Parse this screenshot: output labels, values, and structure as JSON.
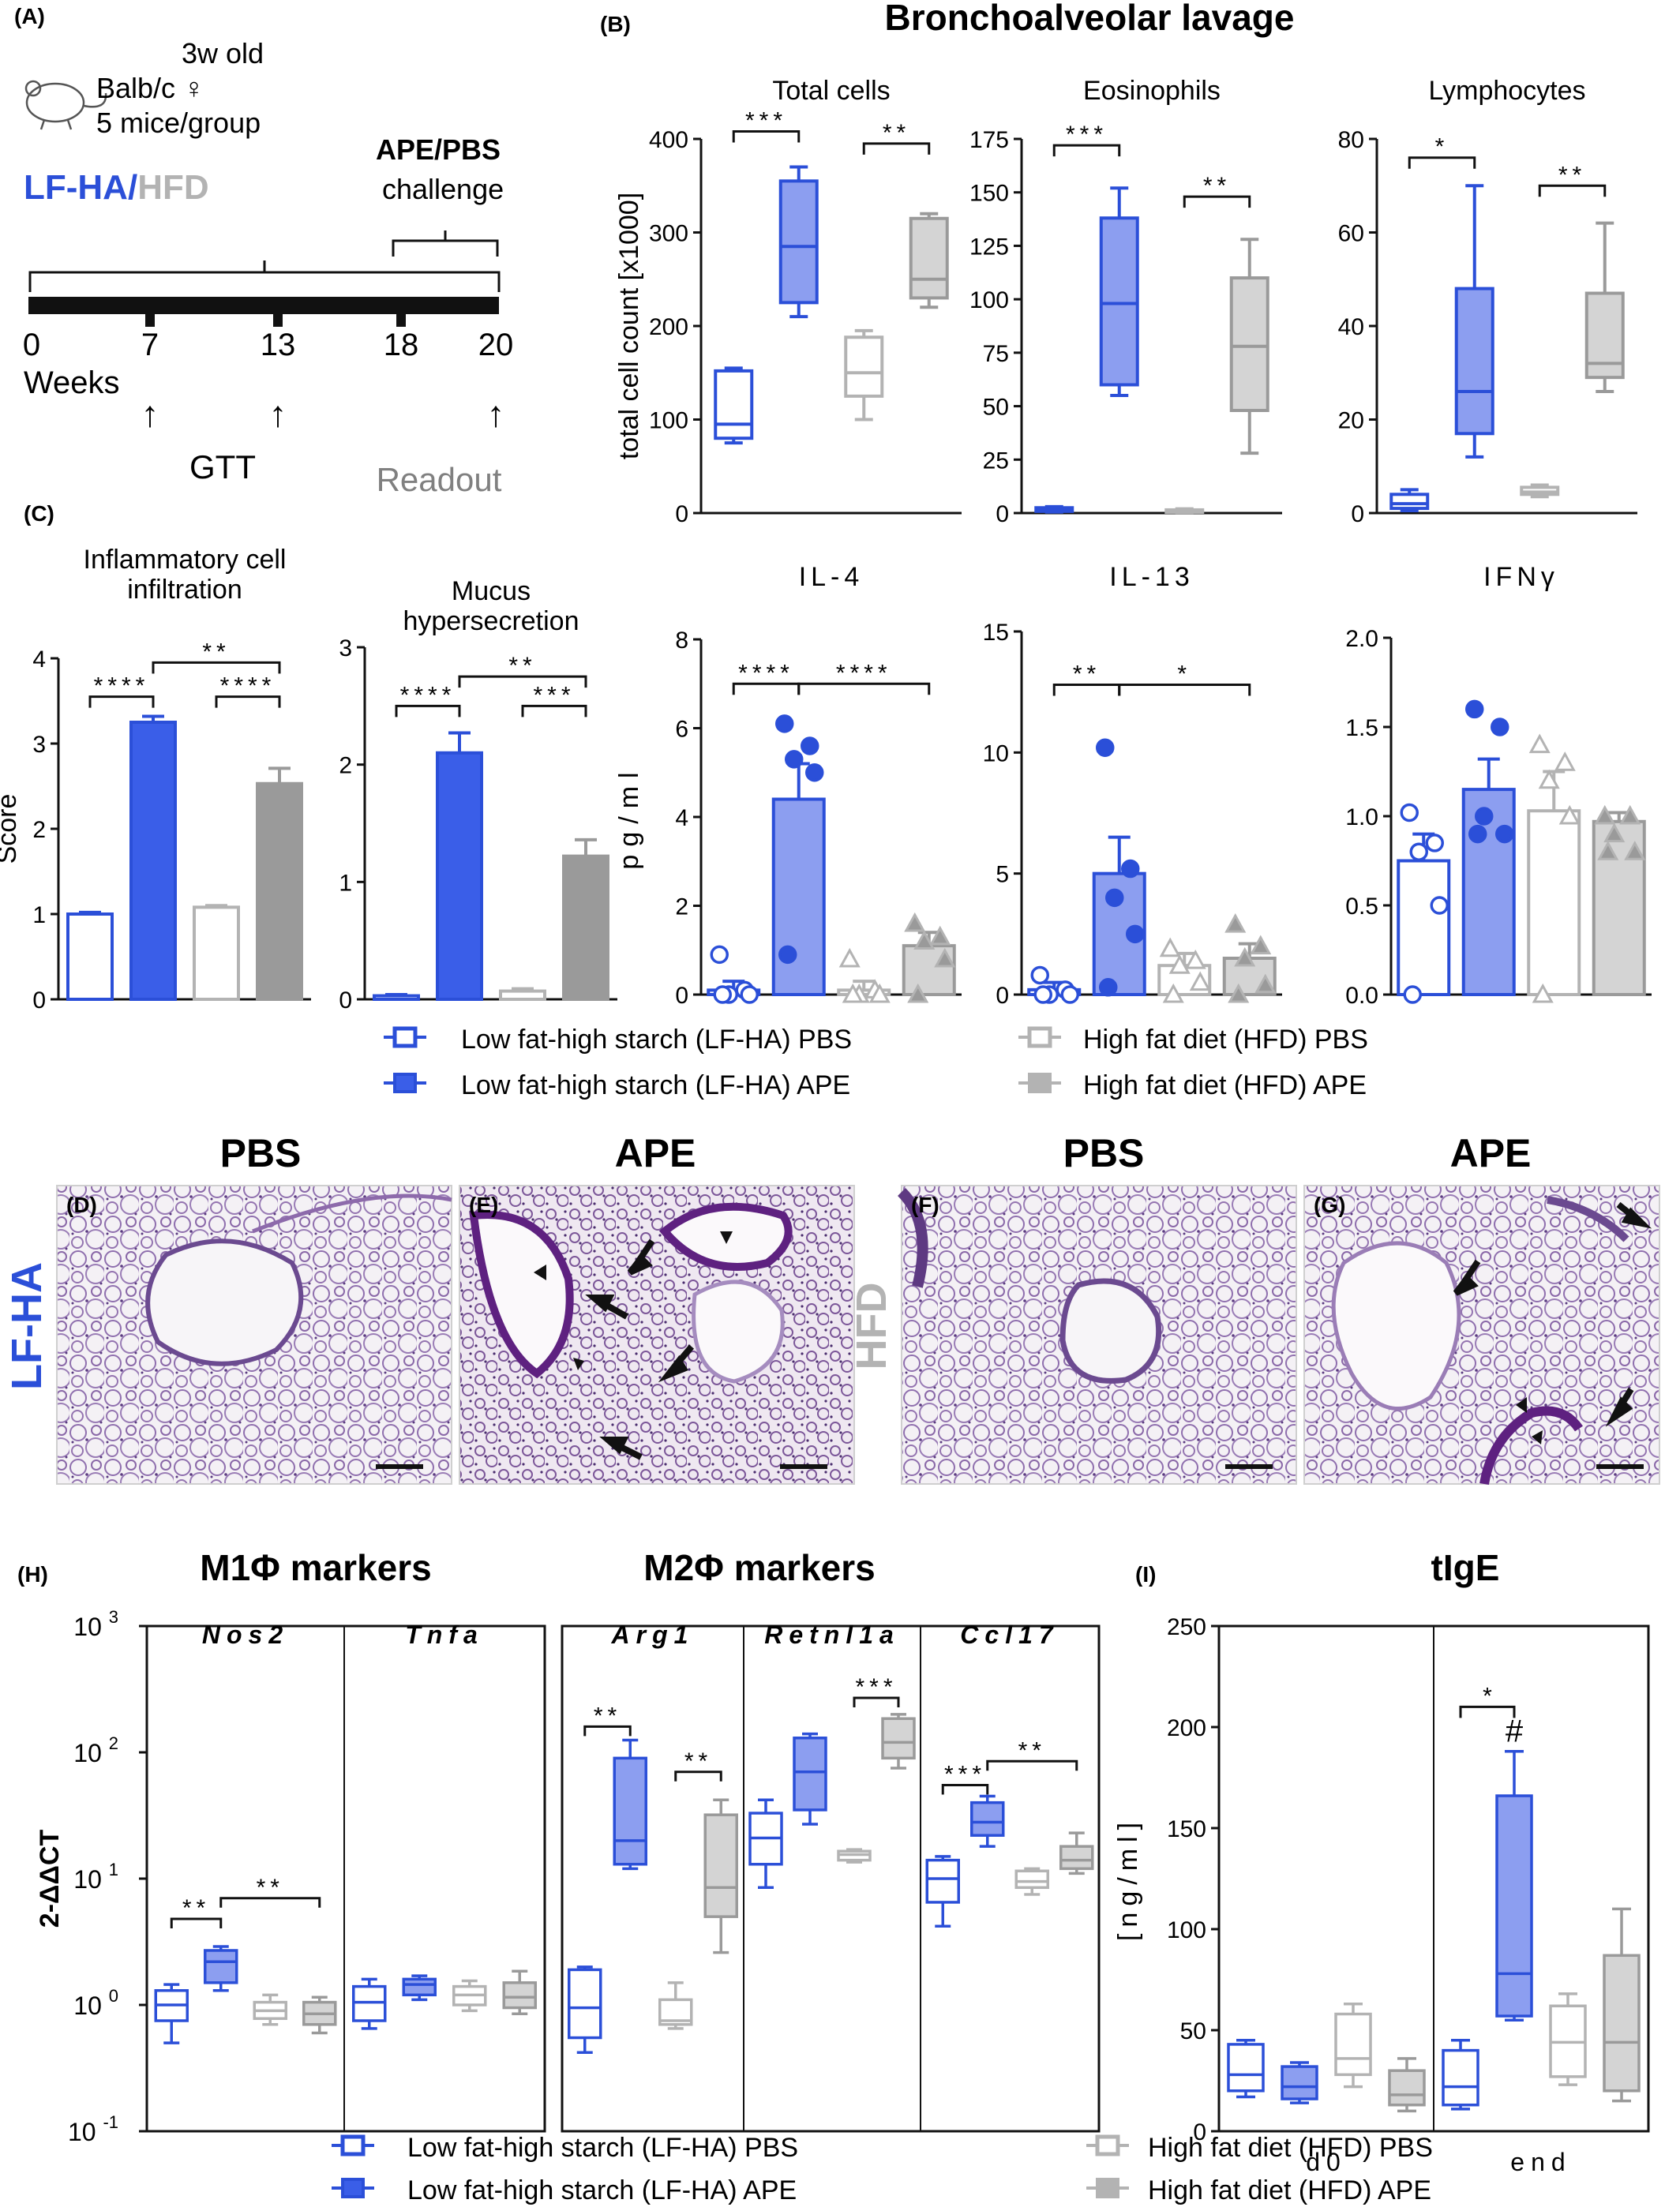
{
  "colors": {
    "blue": "#2b4fd8",
    "blue_fill": "#8c9ef0",
    "blue_fill_dark": "#3a5ee8",
    "gray": "#b3b3b3",
    "gray_fill": "#d4d4d4",
    "gray_dark": "#9a9a9a",
    "histo_bg": "#f3f0f4",
    "histo_stain": "#7e5a9c",
    "histo_mucus": "#6b2a8a"
  },
  "panel_labels": {
    "a": "(A)",
    "b": "(B)",
    "c": "(C)",
    "d": "(D)",
    "e": "(E)",
    "f": "(F)",
    "g": "(G)",
    "h": "(H)",
    "i": "(I)"
  },
  "panel_a": {
    "mouse_age": "3w old",
    "strain": "Balb/c ♀",
    "group_size": "5 mice/group",
    "diet_blue": "LF-HA",
    "diet_sep": "/",
    "diet_gray": "HFD",
    "challenge_title": "APE/PBS",
    "challenge_sub": "challenge",
    "week_label": "Weeks",
    "weeks": [
      "0",
      "7",
      "13",
      "18",
      "20"
    ],
    "arrow_glyph": "↑",
    "gtt_label": "GTT",
    "readout_label": "Readout"
  },
  "panel_b_title": "Bronchoalveolar lavage",
  "panel_c": {
    "titles": [
      "Inflammatory cell\ninfiltration",
      "Mucus\nhypersecretion"
    ],
    "ylabel": "Score"
  },
  "histology": {
    "row_label_blue": "LF-HA",
    "row_label_gray": "HFD",
    "headers": [
      "PBS",
      "APE",
      "PBS",
      "APE"
    ]
  },
  "panel_h": {
    "title_m1": "M1Φ markers",
    "title_m2": "M2Φ markers",
    "ylabel": "2-ΔΔCT",
    "genes": [
      "Nos2",
      "Tnfa",
      "Arg1",
      "Retnl1a",
      "Ccl17"
    ]
  },
  "panel_i": {
    "title": "tIgE",
    "hash_mark": "#"
  },
  "legend": {
    "lf_pbs": "Low fat-high starch (LF-HA) PBS",
    "lf_ape": "Low fat-high starch (LF-HA) APE",
    "hfd_pbs": "High fat diet (HFD) PBS",
    "hfd_ape": "High fat diet (HFD) APE"
  },
  "chart_data": [
    {
      "id": "total-cells",
      "type": "box",
      "title": "Total cells",
      "ylabel": "total  cell  count  [x1000]",
      "ylim": [
        0,
        400
      ],
      "yticks": [
        "0",
        "100",
        "200",
        "300",
        "400"
      ],
      "groups": [
        {
          "min": 75,
          "q1": 80,
          "med": 95,
          "q3": 152,
          "max": 155
        },
        {
          "min": 210,
          "q1": 225,
          "med": 285,
          "q3": 355,
          "max": 370
        },
        {
          "min": 100,
          "q1": 125,
          "med": 150,
          "q3": 188,
          "max": 195
        },
        {
          "min": 220,
          "q1": 230,
          "med": 250,
          "q3": 315,
          "max": 320
        }
      ],
      "significance": [
        {
          "from": 0,
          "to": 1,
          "y": 408,
          "label": "***"
        },
        {
          "from": 2,
          "to": 3,
          "y": 395,
          "label": "**"
        }
      ]
    },
    {
      "id": "eosinophils",
      "type": "box",
      "title": "Eosinophils",
      "ylabel": "",
      "ylim": [
        0,
        175
      ],
      "yticks": [
        "0",
        "25",
        "50",
        "75",
        "100",
        "125",
        "150",
        "175"
      ],
      "groups": [
        {
          "min": 0.5,
          "q1": 0.8,
          "med": 1.5,
          "q3": 2.5,
          "max": 3
        },
        {
          "min": 55,
          "q1": 60,
          "med": 98,
          "q3": 138,
          "max": 152
        },
        {
          "min": 0.3,
          "q1": 0.5,
          "med": 1,
          "q3": 1.5,
          "max": 2
        },
        {
          "min": 28,
          "q1": 48,
          "med": 78,
          "q3": 110,
          "max": 128
        }
      ],
      "significance": [
        {
          "from": 0,
          "to": 1,
          "y": 172,
          "label": "***"
        },
        {
          "from": 2,
          "to": 3,
          "y": 148,
          "label": "**"
        }
      ]
    },
    {
      "id": "lymphocytes",
      "type": "box",
      "title": "Lymphocytes",
      "ylabel": "",
      "ylim": [
        0,
        80
      ],
      "yticks": [
        "0",
        "20",
        "40",
        "60",
        "80"
      ],
      "groups": [
        {
          "min": 0.5,
          "q1": 1,
          "med": 2,
          "q3": 4,
          "max": 5
        },
        {
          "min": 12,
          "q1": 17,
          "med": 26,
          "q3": 48,
          "max": 70
        },
        {
          "min": 3.5,
          "q1": 4,
          "med": 4.5,
          "q3": 5.5,
          "max": 6
        },
        {
          "min": 26,
          "q1": 29,
          "med": 32,
          "q3": 47,
          "max": 62
        }
      ],
      "significance": [
        {
          "from": 0,
          "to": 1,
          "y": 76,
          "label": "*"
        },
        {
          "from": 2,
          "to": 3,
          "y": 70,
          "label": "**"
        }
      ]
    },
    {
      "id": "il4",
      "type": "bar_scatter",
      "title": "IL-4",
      "ylabel": "pg/ml",
      "ylim": [
        0,
        8
      ],
      "yticks": [
        "0",
        "2",
        "4",
        "6",
        "8"
      ],
      "groups": [
        {
          "mean": 0.1,
          "sem": 0.2,
          "points": [
            0.9,
            0.1,
            0,
            0,
            0
          ]
        },
        {
          "mean": 4.4,
          "sem": 0.8,
          "points": [
            6.1,
            5.6,
            5.3,
            5.0,
            0.9
          ]
        },
        {
          "mean": 0.1,
          "sem": 0.2,
          "points": [
            0.8,
            0.1,
            0,
            0,
            0
          ]
        },
        {
          "mean": 1.1,
          "sem": 0.3,
          "points": [
            1.6,
            1.3,
            1.2,
            0.8,
            0
          ]
        }
      ],
      "significance": [
        {
          "from": 0,
          "to": 1,
          "y": 7.0,
          "label": "****"
        },
        {
          "from": 1,
          "to": 3,
          "y": 7.0,
          "label": "****"
        }
      ]
    },
    {
      "id": "il13",
      "type": "bar_scatter",
      "title": "IL-13",
      "ylabel": "",
      "ylim": [
        0,
        15
      ],
      "yticks": [
        "0",
        "5",
        "10",
        "15"
      ],
      "groups": [
        {
          "mean": 0.2,
          "sem": 0.3,
          "points": [
            0.8,
            0.2,
            0,
            0,
            0
          ]
        },
        {
          "mean": 5.0,
          "sem": 1.5,
          "points": [
            10.2,
            5.2,
            4.0,
            2.5,
            0.3
          ]
        },
        {
          "mean": 1.2,
          "sem": 0.5,
          "points": [
            1.9,
            1.4,
            1.2,
            0.5,
            0
          ]
        },
        {
          "mean": 1.5,
          "sem": 0.6,
          "points": [
            2.9,
            2.0,
            1.5,
            0.4,
            0
          ]
        }
      ],
      "significance": [
        {
          "from": 0,
          "to": 1,
          "y": 12.8,
          "label": "**"
        },
        {
          "from": 1,
          "to": 3,
          "y": 12.8,
          "label": "*"
        }
      ]
    },
    {
      "id": "ifng",
      "type": "bar_scatter",
      "title": "IFNγ",
      "ylabel": "",
      "ylim": [
        0,
        2.0
      ],
      "yticks": [
        "0.0",
        "0.5",
        "1.0",
        "1.5",
        "2.0"
      ],
      "groups": [
        {
          "mean": 0.75,
          "sem": 0.15,
          "points": [
            1.02,
            0.85,
            0.8,
            0.5,
            0
          ]
        },
        {
          "mean": 1.15,
          "sem": 0.17,
          "points": [
            1.6,
            1.5,
            1.0,
            0.9,
            0.9
          ]
        },
        {
          "mean": 1.03,
          "sem": 0.22,
          "points": [
            1.4,
            1.3,
            1.2,
            1.0,
            0
          ]
        },
        {
          "mean": 0.97,
          "sem": 0.05,
          "points": [
            1.0,
            1.0,
            0.9,
            0.8,
            0.8
          ]
        }
      ],
      "significance": []
    },
    {
      "id": "infiltration",
      "type": "bar",
      "title": "Inflammatory cell\ninfiltration",
      "ylabel": "Score",
      "ylim": [
        0,
        4
      ],
      "yticks": [
        "0",
        "1",
        "2",
        "3",
        "4"
      ],
      "groups": [
        {
          "mean": 1.0,
          "sem": 0.02
        },
        {
          "mean": 3.25,
          "sem": 0.07
        },
        {
          "mean": 1.08,
          "sem": 0.02
        },
        {
          "mean": 2.53,
          "sem": 0.18
        }
      ],
      "significance": [
        {
          "from": 0,
          "to": 1,
          "y": 3.55,
          "label": "****"
        },
        {
          "from": 2,
          "to": 3,
          "y": 3.55,
          "label": "****"
        },
        {
          "from": 1,
          "to": 3,
          "y": 3.95,
          "label": "**"
        }
      ]
    },
    {
      "id": "mucus",
      "type": "bar",
      "title": "Mucus\nhypersecretion",
      "ylabel": "",
      "ylim": [
        0,
        3
      ],
      "yticks": [
        "0",
        "1",
        "2",
        "3"
      ],
      "groups": [
        {
          "mean": 0.03,
          "sem": 0.01
        },
        {
          "mean": 2.1,
          "sem": 0.17
        },
        {
          "mean": 0.07,
          "sem": 0.02
        },
        {
          "mean": 1.22,
          "sem": 0.14
        }
      ],
      "significance": [
        {
          "from": 0,
          "to": 1,
          "y": 2.5,
          "label": "****"
        },
        {
          "from": 2,
          "to": 3,
          "y": 2.5,
          "label": "***"
        },
        {
          "from": 1,
          "to": 3,
          "y": 2.75,
          "label": "**"
        }
      ]
    },
    {
      "id": "macrophage-markers",
      "type": "box",
      "scale": "log10",
      "ylabel": "2-ΔΔCT",
      "ylim": [
        0.1,
        1000
      ],
      "ytick_powers": [
        "-1",
        "0",
        "1",
        "2",
        "3"
      ],
      "genes": [
        {
          "name": "Nos2",
          "groups": [
            {
              "min": 0.5,
              "q1": 0.75,
              "med": 1.0,
              "q3": 1.3,
              "max": 1.45
            },
            {
              "min": 1.3,
              "q1": 1.5,
              "med": 2.2,
              "q3": 2.7,
              "max": 2.9
            },
            {
              "min": 0.7,
              "q1": 0.78,
              "med": 0.9,
              "q3": 1.05,
              "max": 1.2
            },
            {
              "min": 0.6,
              "q1": 0.7,
              "med": 0.85,
              "q3": 1.05,
              "max": 1.15
            }
          ],
          "significance": [
            {
              "from": 0,
              "to": 1,
              "y": 4.8,
              "label": "**"
            },
            {
              "from": 1,
              "to": 3,
              "y": 7.0,
              "label": "**"
            }
          ]
        },
        {
          "name": "Tnfa",
          "groups": [
            {
              "min": 0.65,
              "q1": 0.75,
              "med": 1.05,
              "q3": 1.4,
              "max": 1.6
            },
            {
              "min": 1.1,
              "q1": 1.2,
              "med": 1.45,
              "q3": 1.6,
              "max": 1.7
            },
            {
              "min": 0.9,
              "q1": 1.0,
              "med": 1.2,
              "q3": 1.4,
              "max": 1.55
            },
            {
              "min": 0.85,
              "q1": 0.95,
              "med": 1.15,
              "q3": 1.5,
              "max": 1.85
            }
          ],
          "significance": []
        },
        {
          "name": "Arg1",
          "groups": [
            {
              "min": 0.42,
              "q1": 0.55,
              "med": 0.95,
              "q3": 1.9,
              "max": 2.0
            },
            {
              "min": 12,
              "q1": 13,
              "med": 20,
              "q3": 90,
              "max": 125
            },
            {
              "min": 0.65,
              "q1": 0.7,
              "med": 0.75,
              "q3": 1.1,
              "max": 1.5
            },
            {
              "min": 2.6,
              "q1": 5,
              "med": 8.5,
              "q3": 32,
              "max": 42
            }
          ],
          "significance": [
            {
              "from": 0,
              "to": 1,
              "y": 160,
              "label": "**"
            },
            {
              "from": 2,
              "to": 3,
              "y": 70,
              "label": "**"
            }
          ]
        },
        {
          "name": "Retnl1a",
          "groups": [
            {
              "min": 8.5,
              "q1": 13,
              "med": 21,
              "q3": 33,
              "max": 42
            },
            {
              "min": 27,
              "q1": 35,
              "med": 70,
              "q3": 130,
              "max": 140
            },
            {
              "min": 13.5,
              "q1": 14,
              "med": 15.5,
              "q3": 16.5,
              "max": 17
            },
            {
              "min": 75,
              "q1": 90,
              "med": 120,
              "q3": 185,
              "max": 200
            }
          ],
          "significance": [
            {
              "from": 2,
              "to": 3,
              "y": 270,
              "label": "***"
            }
          ]
        },
        {
          "name": "Ccl17",
          "groups": [
            {
              "min": 4.2,
              "q1": 6.5,
              "med": 10,
              "q3": 14,
              "max": 15
            },
            {
              "min": 18,
              "q1": 22,
              "med": 28,
              "q3": 40,
              "max": 45
            },
            {
              "min": 7.5,
              "q1": 8.5,
              "med": 9.5,
              "q3": 11.5,
              "max": 12
            },
            {
              "min": 11,
              "q1": 12,
              "med": 14,
              "q3": 18,
              "max": 23
            }
          ],
          "significance": [
            {
              "from": 0,
              "to": 1,
              "y": 55,
              "label": "***"
            },
            {
              "from": 1,
              "to": 3,
              "y": 85,
              "label": "**"
            }
          ]
        }
      ]
    },
    {
      "id": "tige",
      "type": "box",
      "title": "tIgE",
      "ylabel": "[ng/ml]",
      "ylim": [
        0,
        250
      ],
      "yticks": [
        "0",
        "50",
        "100",
        "150",
        "200",
        "250"
      ],
      "timepoints": [
        {
          "name": "d0",
          "groups": [
            {
              "min": 17,
              "q1": 20,
              "med": 28,
              "q3": 43,
              "max": 45
            },
            {
              "min": 14,
              "q1": 16,
              "med": 22,
              "q3": 32,
              "max": 34
            },
            {
              "min": 22,
              "q1": 28,
              "med": 36,
              "q3": 58,
              "max": 63
            },
            {
              "min": 10,
              "q1": 13,
              "med": 18,
              "q3": 30,
              "max": 36
            }
          ],
          "significance": []
        },
        {
          "name": "end",
          "groups": [
            {
              "min": 11,
              "q1": 13,
              "med": 22,
              "q3": 40,
              "max": 45
            },
            {
              "min": 55,
              "q1": 57,
              "med": 78,
              "q3": 166,
              "max": 188
            },
            {
              "min": 23,
              "q1": 27,
              "med": 44,
              "q3": 62,
              "max": 68
            },
            {
              "min": 15,
              "q1": 20,
              "med": 44,
              "q3": 87,
              "max": 110
            }
          ],
          "significance": [
            {
              "from": 0,
              "to": 1,
              "y": 210,
              "label": "*"
            }
          ]
        }
      ]
    }
  ]
}
